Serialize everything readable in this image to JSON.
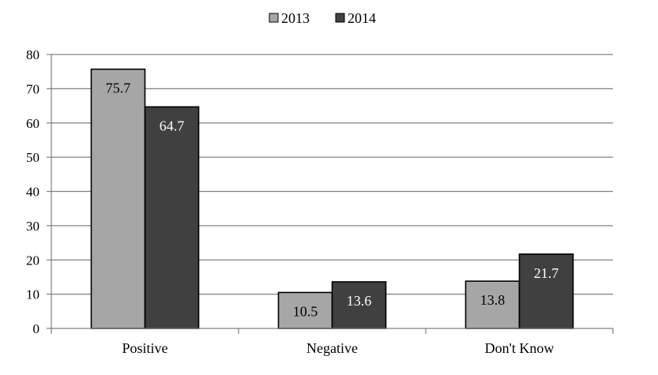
{
  "chart_data": {
    "type": "bar",
    "title": "",
    "xlabel": "",
    "ylabel": "",
    "categories": [
      "Positive",
      "Negative",
      "Don't Know"
    ],
    "series": [
      {
        "name": "2013",
        "values": [
          75.7,
          10.5,
          13.8
        ],
        "color": "#a6a6a6",
        "label_color": "#000000"
      },
      {
        "name": "2014",
        "values": [
          64.7,
          13.6,
          21.7
        ],
        "color": "#404040",
        "label_color": "#ffffff"
      }
    ],
    "ylim": [
      0,
      80
    ],
    "yticks": [
      0,
      10,
      20,
      30,
      40,
      50,
      60,
      70,
      80
    ],
    "grid": true,
    "legend_position": "top-center",
    "data_labels": true
  }
}
